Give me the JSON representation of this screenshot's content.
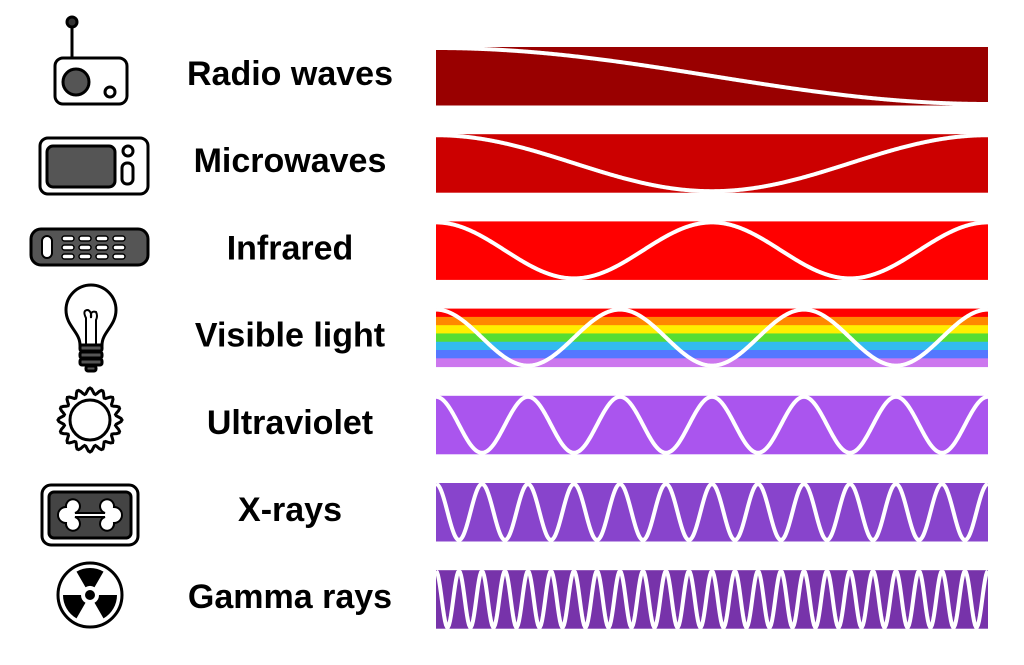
{
  "rows": [
    {
      "label": "Radio waves"
    },
    {
      "label": "Microwaves"
    },
    {
      "label": "Infrared"
    },
    {
      "label": "Visible light"
    },
    {
      "label": "Ultraviolet"
    },
    {
      "label": "X-rays"
    },
    {
      "label": "Gamma rays"
    }
  ]
}
